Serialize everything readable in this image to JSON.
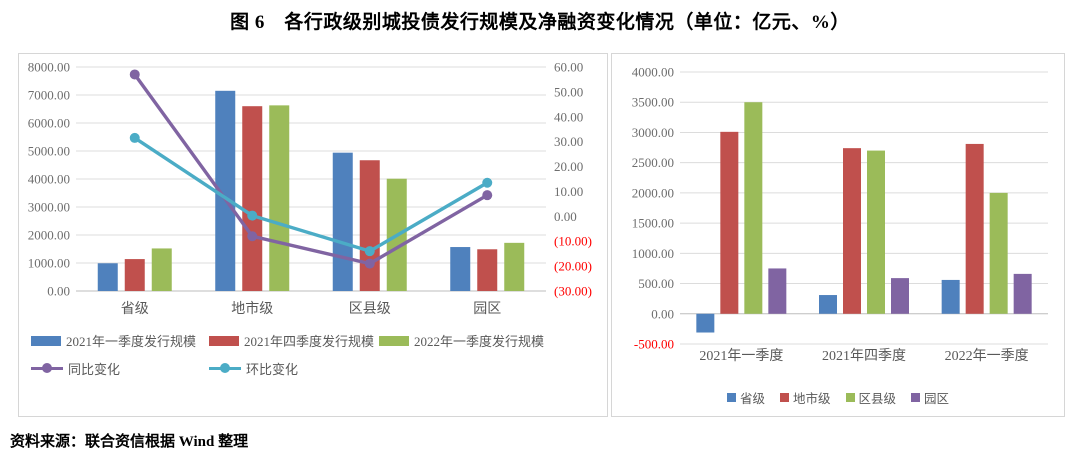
{
  "page": {
    "title": "图 6　各行政级别城投债发行规模及净融资变化情况（单位：亿元、%）",
    "source": "资料来源：联合资信根据 Wind 整理"
  },
  "colors": {
    "blue": "#4F81BD",
    "red": "#C0504D",
    "green": "#9BBB59",
    "purple": "#8064A2",
    "cyan": "#4BACC6",
    "axis_text": "#6e6e6e",
    "negative_text": "#FF0000",
    "gridline": "#DCDCDC",
    "axis_line": "#BEBEBE",
    "category_text": "#595959"
  },
  "chart_data": [
    {
      "type": "bar",
      "subtype": "grouped-bars-with-lines",
      "categories": [
        "省级",
        "地市级",
        "区县级",
        "园区"
      ],
      "bar_series": [
        {
          "name": "2021年一季度发行规模",
          "color_key": "blue",
          "values": [
            990,
            7150,
            4940,
            1570
          ]
        },
        {
          "name": "2021年四季度发行规模",
          "color_key": "red",
          "values": [
            1140,
            6600,
            4670,
            1490
          ]
        },
        {
          "name": "2022年一季度发行规模",
          "color_key": "green",
          "values": [
            1520,
            6630,
            4010,
            1720
          ]
        }
      ],
      "line_series": [
        {
          "name": "同比变化",
          "color_key": "purple",
          "values": [
            57,
            -8,
            -19,
            8.5
          ]
        },
        {
          "name": "环比变化",
          "color_key": "cyan",
          "values": [
            31.5,
            0.3,
            -14,
            13.5
          ]
        }
      ],
      "y_primary": {
        "min": 0,
        "max": 8000,
        "step": 1000,
        "negative_style": "red-minus"
      },
      "y_secondary": {
        "min": -30,
        "max": 60,
        "step": 10,
        "negative_style": "red-paren"
      },
      "grid": true,
      "legend_position": "bottom-two-rows"
    },
    {
      "type": "bar",
      "subtype": "grouped-bars",
      "categories": [
        "2021年一季度",
        "2021年四季度",
        "2022年一季度"
      ],
      "bar_series": [
        {
          "name": "省级",
          "color_key": "blue",
          "values": [
            -310,
            310,
            560
          ]
        },
        {
          "name": "地市级",
          "color_key": "red",
          "values": [
            3010,
            2740,
            2810
          ]
        },
        {
          "name": "区县级",
          "color_key": "green",
          "values": [
            3500,
            2700,
            2000
          ]
        },
        {
          "name": "园区",
          "color_key": "purple",
          "values": [
            750,
            590,
            660
          ]
        }
      ],
      "y_primary": {
        "min": -500,
        "max": 4000,
        "step": 500,
        "negative_style": "red-minus"
      },
      "grid": true,
      "legend_position": "bottom-center-row"
    }
  ]
}
